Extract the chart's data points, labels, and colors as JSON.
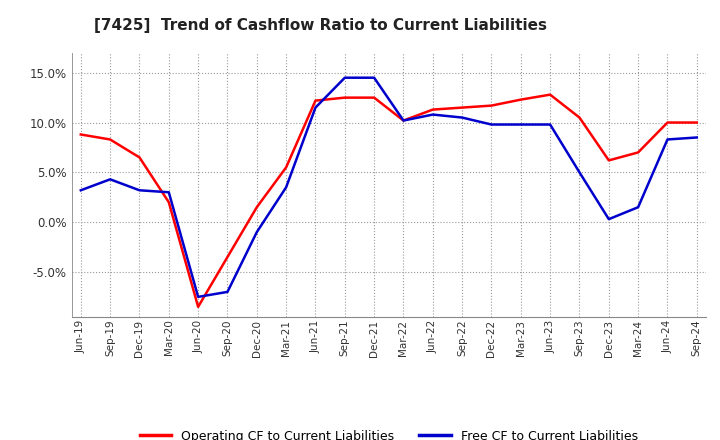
{
  "title": "[7425]  Trend of Cashflow Ratio to Current Liabilities",
  "x_labels": [
    "Jun-19",
    "Sep-19",
    "Dec-19",
    "Mar-20",
    "Jun-20",
    "Sep-20",
    "Dec-20",
    "Mar-21",
    "Jun-21",
    "Sep-21",
    "Dec-21",
    "Mar-22",
    "Jun-22",
    "Sep-22",
    "Dec-22",
    "Mar-23",
    "Jun-23",
    "Sep-23",
    "Dec-23",
    "Mar-24",
    "Jun-24",
    "Sep-24"
  ],
  "operating_cf_raw": [
    8.8,
    8.3,
    6.5,
    2.0,
    -8.5,
    -3.5,
    1.5,
    5.5,
    12.2,
    12.5,
    12.5,
    10.2,
    11.3,
    11.5,
    11.7,
    12.3,
    12.8,
    10.5,
    6.2,
    7.0,
    10.0,
    10.0
  ],
  "free_cf_raw": [
    3.2,
    4.3,
    3.2,
    3.0,
    -7.5,
    -7.0,
    -1.0,
    3.5,
    11.5,
    14.5,
    14.5,
    10.2,
    10.8,
    10.5,
    9.8,
    9.8,
    9.8,
    5.0,
    0.3,
    1.5,
    8.3,
    8.5
  ],
  "ylim": [
    -9.5,
    17.0
  ],
  "yticks": [
    -5.0,
    0.0,
    5.0,
    10.0,
    15.0
  ],
  "operating_color": "#FF0000",
  "free_color": "#0000CC",
  "grid_color": "#999999",
  "background_color": "#FFFFFF",
  "plot_bg_color": "#FFFFFF",
  "legend_labels": [
    "Operating CF to Current Liabilities",
    "Free CF to Current Liabilities"
  ]
}
